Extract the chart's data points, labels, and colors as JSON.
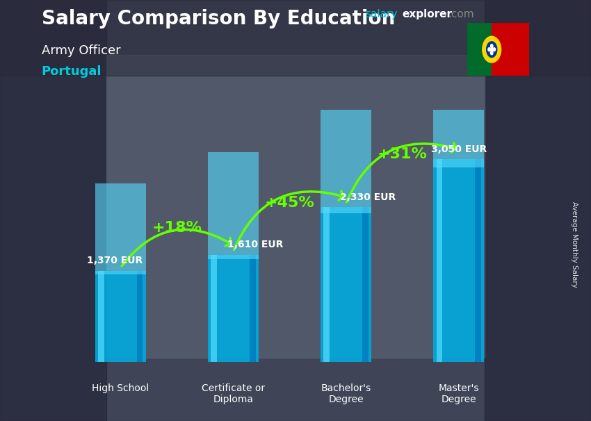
{
  "title_main": "Salary Comparison By Education",
  "subtitle1": "Army Officer",
  "subtitle2": "Portugal",
  "ylabel": "Average Monthly Salary",
  "categories": [
    "High School",
    "Certificate or\nDiploma",
    "Bachelor's\nDegree",
    "Master's\nDegree"
  ],
  "values": [
    1370,
    1610,
    2330,
    3050
  ],
  "labels": [
    "1,370 EUR",
    "1,610 EUR",
    "2,330 EUR",
    "3,050 EUR"
  ],
  "pct_labels": [
    "+18%",
    "+45%",
    "+31%"
  ],
  "bar_color_main": "#00AADD",
  "bar_color_light": "#55DDFF",
  "bar_color_dark": "#0077BB",
  "pct_color": "#66FF00",
  "bg_color_top": "#555555",
  "bg_color_bottom": "#333333",
  "title_color": "#FFFFFF",
  "subtitle1_color": "#FFFFFF",
  "subtitle2_color": "#00CCDD",
  "label_color": "#FFFFFF",
  "site_salary_color": "#00BBDD",
  "site_explorer_color": "#FFFFFF",
  "site_com_color": "#888888",
  "ylim": [
    0,
    3800
  ],
  "bar_width": 0.45,
  "flag_green": "#006B2B",
  "flag_red": "#CC0000",
  "flag_yellow": "#FFD700",
  "flag_blue": "#003399"
}
